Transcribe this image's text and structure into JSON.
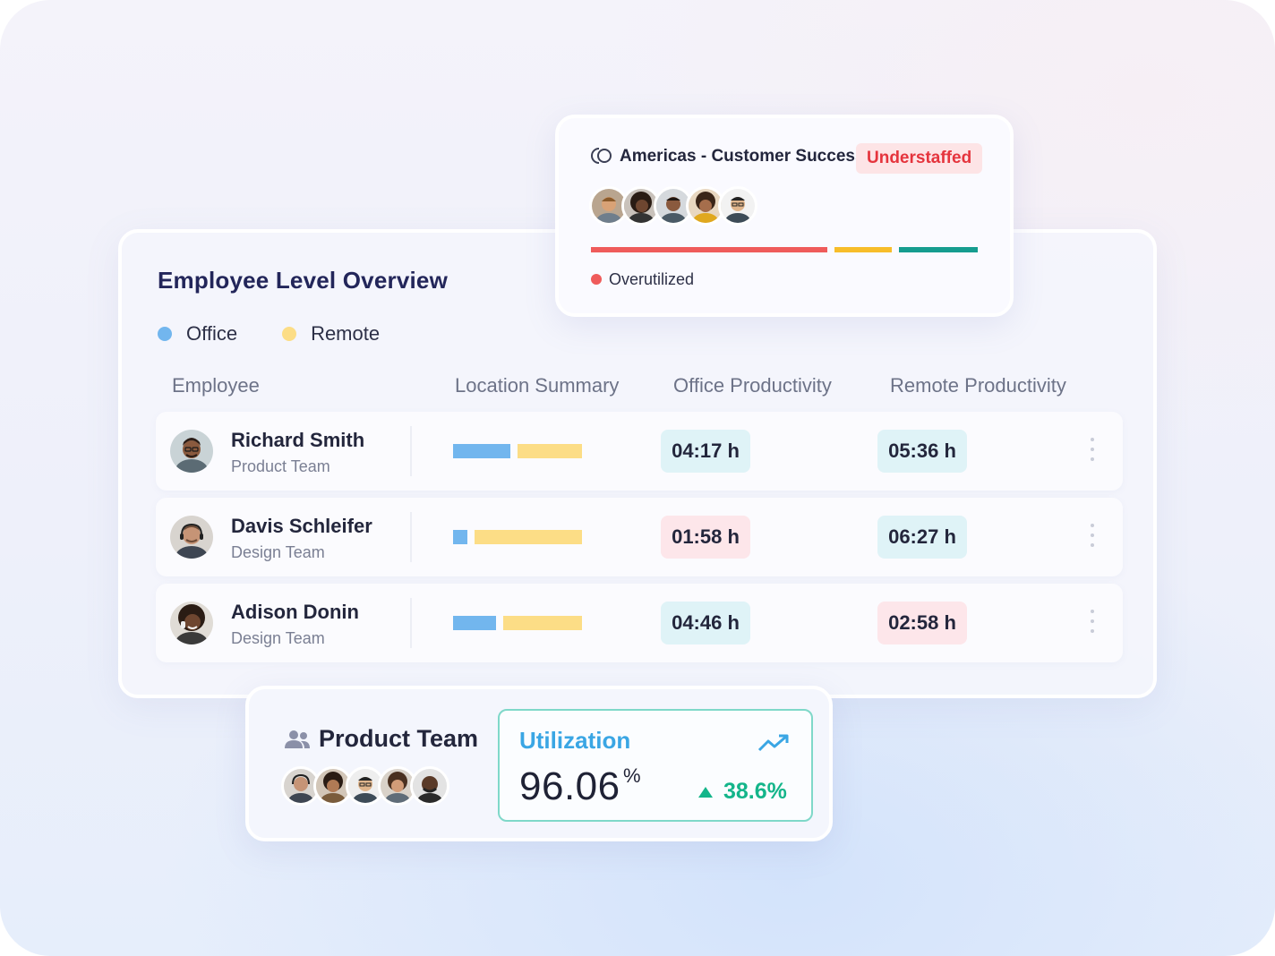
{
  "colors": {
    "office": "#72b6ee",
    "remote": "#fcdd86",
    "good_pill": "#dff3f7",
    "bad_pill": "#fde6ea",
    "overutilized": "#ef5b5b",
    "seg_amber": "#f7bd2a",
    "seg_teal": "#159c8f",
    "accent_blue": "#3aa6e4",
    "positive": "#14b58a"
  },
  "overview": {
    "title": "Employee Level Overview",
    "legend": [
      {
        "label": "Office",
        "color": "#72b6ee"
      },
      {
        "label": "Remote",
        "color": "#fcdd86"
      }
    ],
    "columns": [
      "Employee",
      "Location Summary",
      "Office Productivity",
      "Remote Productivity"
    ],
    "rows": [
      {
        "name": "Richard Smith",
        "team": "Product Team",
        "office_share": 0.44,
        "remote_share": 0.5,
        "office_productivity": "04:17 h",
        "office_status": "good",
        "remote_productivity": "05:36 h",
        "remote_status": "good"
      },
      {
        "name": "Davis Schleifer",
        "team": "Design Team",
        "office_share": 0.11,
        "remote_share": 0.83,
        "office_productivity": "01:58 h",
        "office_status": "bad",
        "remote_productivity": "06:27 h",
        "remote_status": "good"
      },
      {
        "name": "Adison Donin",
        "team": "Design Team",
        "office_share": 0.33,
        "remote_share": 0.61,
        "office_productivity": "04:46 h",
        "office_status": "good",
        "remote_productivity": "02:58 h",
        "remote_status": "bad"
      }
    ]
  },
  "region_card": {
    "title": "Americas - Customer Success",
    "badge": "Understaffed",
    "icon": "circle-loop-icon",
    "avatar_count": 5,
    "status_label": "Overutilized"
  },
  "team_card": {
    "title": "Product Team",
    "icon": "users-icon",
    "avatar_count": 5,
    "utilization_label": "Utilization",
    "utilization_value": "96.06",
    "utilization_unit": "%",
    "change": "38.6%",
    "trend_icon": "trending-up-icon"
  }
}
